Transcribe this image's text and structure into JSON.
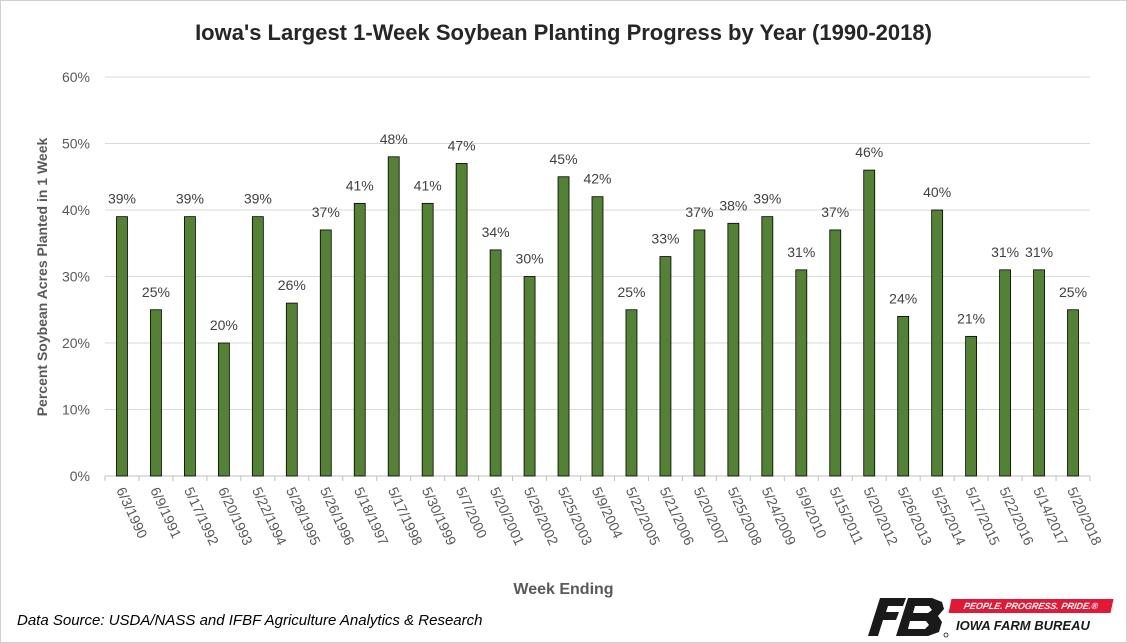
{
  "chart_data": {
    "type": "bar",
    "title": "Iowa's Largest 1-Week Soybean Planting Progress by Year (1990-2018)",
    "xlabel": "Week Ending",
    "ylabel": "Percent Soybean Acres Planted in 1 Week",
    "ylim": [
      0,
      60
    ],
    "yticks": [
      "0%",
      "10%",
      "20%",
      "30%",
      "40%",
      "50%",
      "60%"
    ],
    "grid": true,
    "bar_color": "#548235",
    "categories": [
      "6/3/1990",
      "6/9/1991",
      "5/17/1992",
      "6/20/1993",
      "5/22/1994",
      "5/28/1995",
      "5/26/1996",
      "5/18/1997",
      "5/17/1998",
      "5/30/1999",
      "5/7/2000",
      "5/20/2001",
      "5/26/2002",
      "5/25/2003",
      "5/9/2004",
      "5/22/2005",
      "5/21/2006",
      "5/20/2007",
      "5/25/2008",
      "5/24/2009",
      "5/9/2010",
      "5/15/2011",
      "5/20/2012",
      "5/26/2013",
      "5/25/2014",
      "5/17/2015",
      "5/22/2016",
      "5/14/2017",
      "5/20/2018"
    ],
    "values": [
      39,
      25,
      39,
      20,
      39,
      26,
      37,
      41,
      48,
      41,
      47,
      34,
      30,
      45,
      42,
      25,
      33,
      37,
      38,
      39,
      31,
      37,
      46,
      24,
      40,
      21,
      31,
      31,
      25
    ],
    "data_labels": [
      "39%",
      "25%",
      "39%",
      "20%",
      "39%",
      "26%",
      "37%",
      "41%",
      "48%",
      "41%",
      "47%",
      "34%",
      "30%",
      "45%",
      "42%",
      "25%",
      "33%",
      "37%",
      "38%",
      "39%",
      "31%",
      "37%",
      "46%",
      "24%",
      "40%",
      "21%",
      "31%",
      "31%",
      "25%"
    ]
  },
  "source_text": "Data Source: USDA/NASS and IFBF Agriculture Analytics & Research",
  "logo": {
    "tagline": "PEOPLE. PROGRESS. PRIDE.®",
    "name": "IOWA FARM BUREAU",
    "icon": "farm-bureau-fb-logo",
    "colors": {
      "dark": "#1a1a1a",
      "red": "#e31837"
    }
  }
}
